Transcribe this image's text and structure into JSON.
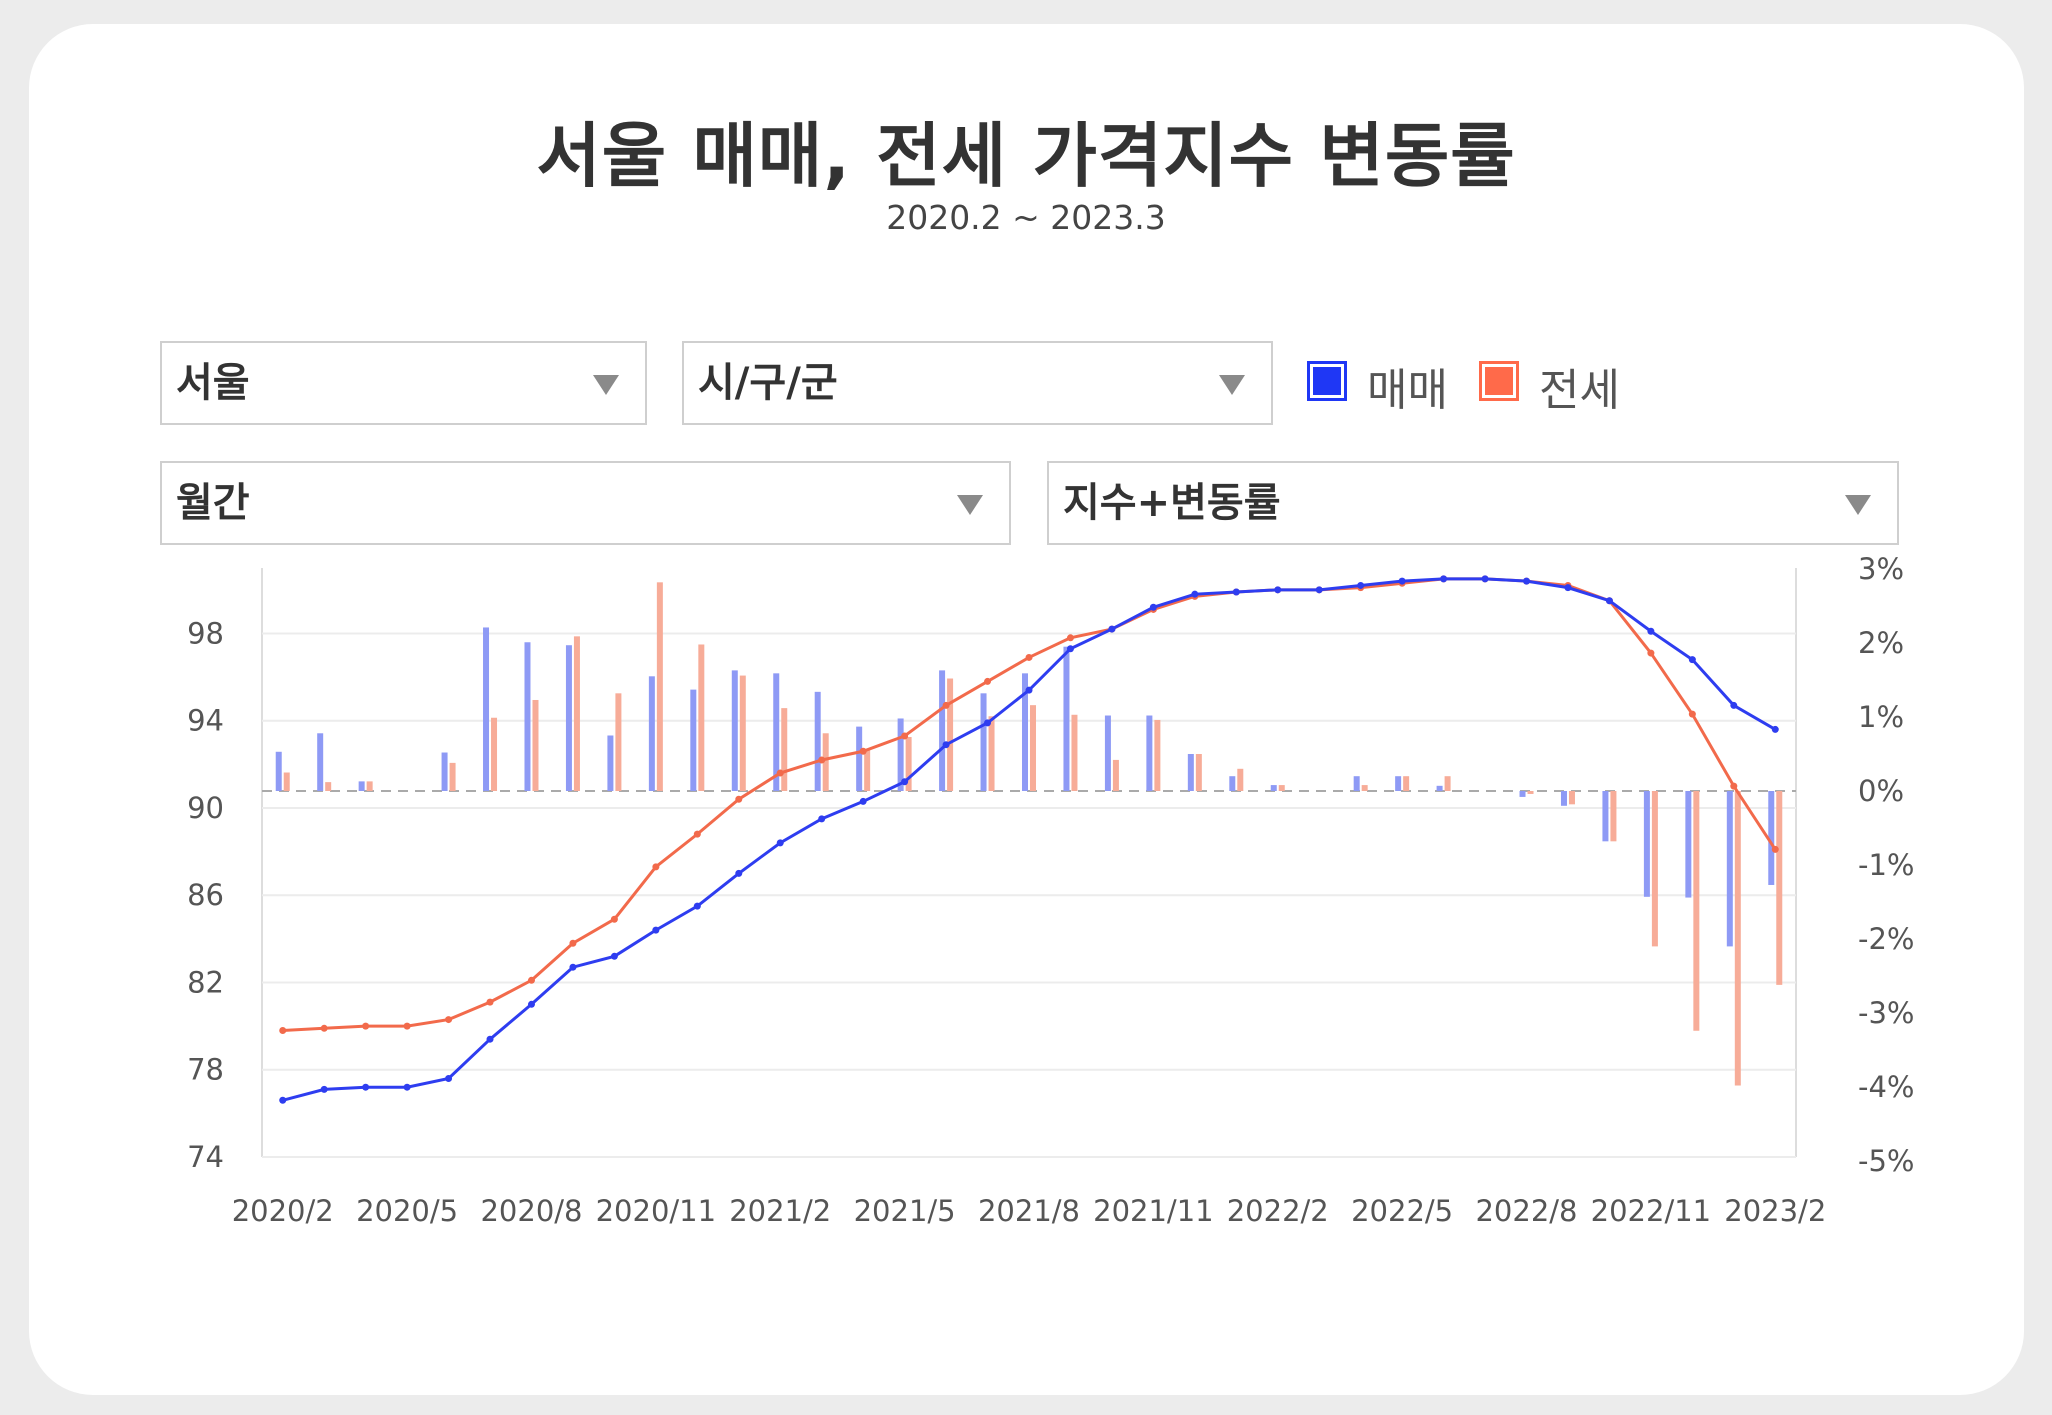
{
  "header": {
    "title": "서울 매매, 전세 가격지수 변동률",
    "subtitle": "2020.2 ~ 2023.3"
  },
  "filters": {
    "region": "서울",
    "district": "시/구/군",
    "period": "월간",
    "mode": "지수+변동률"
  },
  "legend": {
    "sale": "매매",
    "jeonse": "전세"
  },
  "colors": {
    "sale_line": "#2e3df0",
    "sale_bar": "#8e9af5",
    "jeonse_line": "#f26a4b",
    "jeonse_bar": "#f7ac98",
    "legend_sale": "#1f37f5",
    "legend_jeonse": "#ff6a4a"
  },
  "chart_data": {
    "type": "bar+line",
    "categories": [
      "2020/2",
      "2020/3",
      "2020/4",
      "2020/5",
      "2020/6",
      "2020/7",
      "2020/8",
      "2020/9",
      "2020/10",
      "2020/11",
      "2020/12",
      "2021/1",
      "2021/2",
      "2021/3",
      "2021/4",
      "2021/5",
      "2021/6",
      "2021/7",
      "2021/8",
      "2021/9",
      "2021/10",
      "2021/11",
      "2021/12",
      "2022/1",
      "2022/2",
      "2022/3",
      "2022/4",
      "2022/5",
      "2022/6",
      "2022/7",
      "2022/8",
      "2022/9",
      "2022/10",
      "2022/11",
      "2022/12",
      "2023/1",
      "2023/2"
    ],
    "x_tick_labels": [
      "2020/2",
      "2020/5",
      "2020/8",
      "2020/11",
      "2021/2",
      "2021/5",
      "2021/8",
      "2021/11",
      "2022/2",
      "2022/5",
      "2022/8",
      "2022/11",
      "2023/2"
    ],
    "y_left": {
      "ticks": [
        74,
        78,
        82,
        86,
        90,
        94,
        98
      ],
      "range": [
        74,
        101
      ]
    },
    "y_right": {
      "ticks": [
        "-5%",
        "-4%",
        "-3%",
        "-2%",
        "-1%",
        "0%",
        "1%",
        "2%",
        "3%"
      ],
      "range": [
        -5,
        3
      ]
    },
    "index_series": [
      {
        "name": "매매",
        "values": [
          76.6,
          77.1,
          77.2,
          77.2,
          77.6,
          79.4,
          81.0,
          82.7,
          83.2,
          84.4,
          85.5,
          87.0,
          88.4,
          89.5,
          90.3,
          91.2,
          92.9,
          93.9,
          95.4,
          97.3,
          98.2,
          99.2,
          99.8,
          99.9,
          100.0,
          100.0,
          100.2,
          100.4,
          100.5,
          100.5,
          100.4,
          100.1,
          99.5,
          98.1,
          96.8,
          94.7,
          93.6
        ]
      },
      {
        "name": "전세",
        "values": [
          79.8,
          79.9,
          80.0,
          80.0,
          80.3,
          81.1,
          82.1,
          83.8,
          84.9,
          87.3,
          88.8,
          90.4,
          91.6,
          92.2,
          92.6,
          93.3,
          94.7,
          95.8,
          96.9,
          97.8,
          98.2,
          99.1,
          99.7,
          99.9,
          100.0,
          100.0,
          100.1,
          100.3,
          100.5,
          100.5,
          100.4,
          100.2,
          99.5,
          97.1,
          94.3,
          91.0,
          88.1
        ]
      }
    ],
    "change_series": [
      {
        "name": "매매",
        "values": [
          0.53,
          0.78,
          0.13,
          0.0,
          0.52,
          2.21,
          2.01,
          1.97,
          0.75,
          1.55,
          1.37,
          1.63,
          1.59,
          1.34,
          0.87,
          0.98,
          1.63,
          1.32,
          1.59,
          1.95,
          1.02,
          1.02,
          0.5,
          0.2,
          0.08,
          0.0,
          0.2,
          0.2,
          0.07,
          0.0,
          -0.08,
          -0.2,
          -0.68,
          -1.43,
          -1.44,
          -2.1,
          -1.27
        ]
      },
      {
        "name": "전세",
        "values": [
          0.25,
          0.12,
          0.13,
          0.0,
          0.38,
          0.99,
          1.23,
          2.09,
          1.32,
          2.82,
          1.98,
          1.56,
          1.12,
          0.78,
          0.55,
          0.73,
          1.52,
          1.01,
          1.16,
          1.03,
          0.42,
          0.96,
          0.5,
          0.3,
          0.08,
          0.0,
          0.08,
          0.2,
          0.2,
          0.0,
          -0.04,
          -0.18,
          -0.68,
          -2.1,
          -3.24,
          -3.98,
          -2.62
        ]
      }
    ],
    "grid": true,
    "legend_position": "top-right"
  }
}
